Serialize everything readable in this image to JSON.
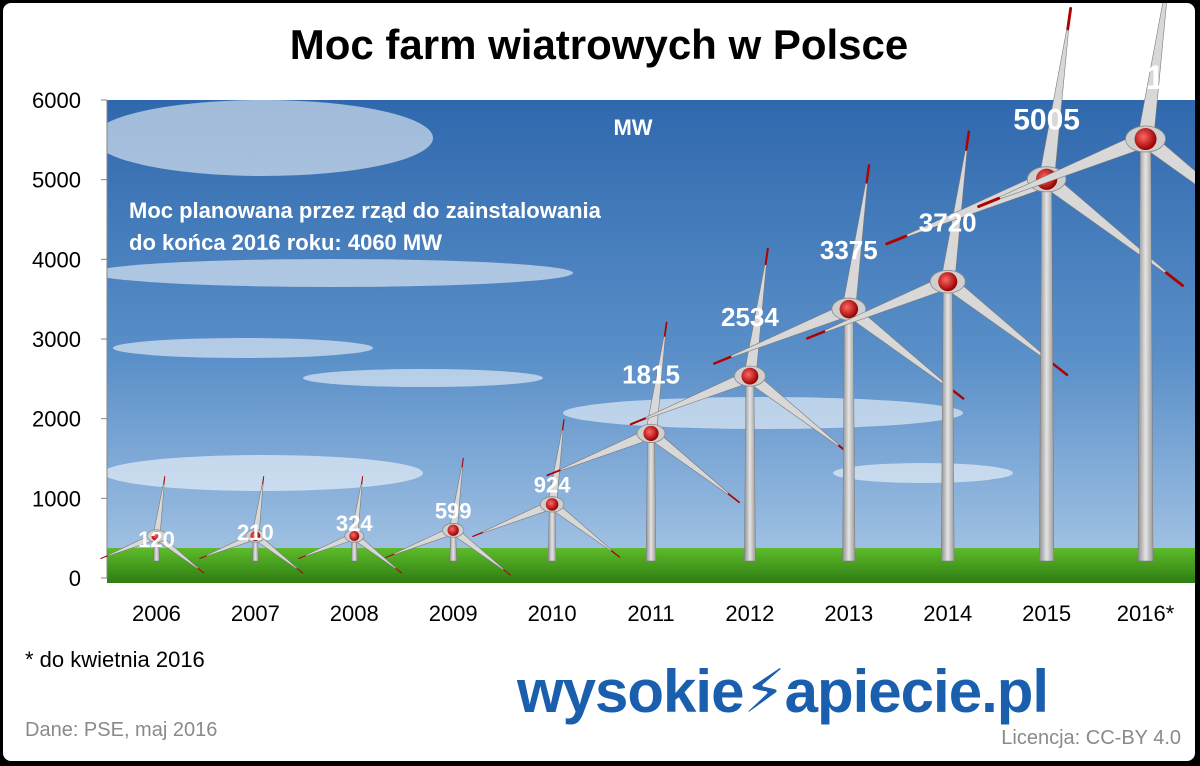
{
  "chart_data": {
    "type": "bar",
    "title": "Moc farm wiatrowych w Polsce",
    "unit_label": "MW",
    "categories": [
      "2006",
      "2007",
      "2008",
      "2009",
      "2010",
      "2011",
      "2012",
      "2013",
      "2014",
      "2015",
      "2016*"
    ],
    "values": [
      120,
      210,
      324,
      599,
      924,
      1815,
      2534,
      3375,
      3720,
      5005,
      5510
    ],
    "data_labels": [
      "120",
      "210",
      "324",
      "599",
      "924",
      "1815",
      "2534",
      "3375",
      "3720",
      "5005",
      "5510"
    ],
    "ylim": [
      0,
      6000
    ],
    "yticks": [
      "0",
      "1000",
      "2000",
      "3000",
      "4000",
      "5000",
      "6000"
    ],
    "annotation_line1": "Moc planowana przez rząd do zainstalowania",
    "annotation_line2": "do końca 2016 roku: 4060 MW",
    "mark_style": "wind turbines",
    "background": "sky with grass",
    "colors": {
      "sky_top": "#2f68ad",
      "sky_bottom": "#a9c7e6",
      "grass": "#3e9a1a",
      "label": "#ffffff",
      "hub": "#cc0000",
      "tower": "#b9b9b9"
    }
  },
  "footnote": "* do kwietnia 2016",
  "source": "Dane: PSE,  maj 2016",
  "license": "Licencja: CC-BY 4.0",
  "logo": {
    "left": "wysokie",
    "right": "apiecie.pl"
  }
}
